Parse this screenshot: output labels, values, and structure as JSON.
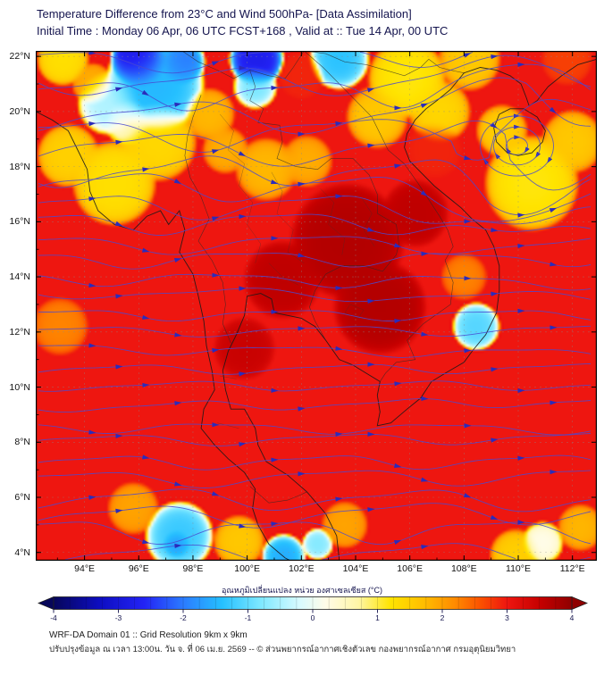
{
  "header": {
    "title": "Temperature Difference from 23°C and Wind 500hPa- [Data Assimilation]",
    "subtitle": "Initial Time : Monday 06 Apr, 06 UTC FCST+168 , Valid at ::  Tue 14 Apr, 00 UTC"
  },
  "map": {
    "lat_tick_labels": [
      "22°N",
      "20°N",
      "18°N",
      "16°N",
      "14°N",
      "12°N",
      "10°N",
      "8°N",
      "6°N",
      "4°N"
    ],
    "lon_tick_labels": [
      "94°E",
      "96°E",
      "98°E",
      "100°E",
      "102°E",
      "104°E",
      "106°E",
      "108°E",
      "110°E",
      "112°E"
    ]
  },
  "colorbar": {
    "label": "อุณหภูมิเปลี่ยนแปลง หน่วย องศาเซลเซียส (°C)",
    "tick_labels": [
      "-4",
      "-3",
      "-2",
      "-1",
      "0",
      "1",
      "2",
      "3",
      "4"
    ]
  },
  "footer": {
    "line1": "WRF-DA Domain 01 :: Grid Resolution 9km x 9km",
    "line2": "ปรับปรุงข้อมูล ณ เวลา 13:00น. วัน จ. ที่ 06 เม.ย. 2569 -- © ส่วนพยากรณ์อากาศเชิงตัวเลข กองพยากรณ์อากาศ กรมอุตุนิยมวิทยา"
  },
  "chart_data": {
    "type": "heatmap",
    "title": "Temperature Difference from 23°C and Wind 500hPa",
    "units": "°C",
    "lon_range": [
      92.2,
      112.9
    ],
    "lat_range": [
      3.7,
      22.2
    ],
    "lon_ticks": [
      94,
      96,
      98,
      100,
      102,
      104,
      106,
      108,
      110,
      112
    ],
    "lat_ticks": [
      22,
      20,
      18,
      16,
      14,
      12,
      10,
      8,
      6,
      4
    ],
    "value_range": [
      -4,
      4
    ],
    "base_value": 3.0,
    "colors": {
      "streamline": "#4a4ad0",
      "arrowhead": "#2b2bba",
      "grid": "#8a8a8a",
      "coastline": "#1a1a1a",
      "frame": "#000000",
      "text": "#14144e"
    },
    "colormap": [
      {
        "v": -4.0,
        "c": "#06065a"
      },
      {
        "v": -3.3,
        "c": "#0d0dc0"
      },
      {
        "v": -2.6,
        "c": "#2323f5"
      },
      {
        "v": -2.0,
        "c": "#2b7bff"
      },
      {
        "v": -1.4,
        "c": "#25c0ff"
      },
      {
        "v": -0.8,
        "c": "#7fe8ff"
      },
      {
        "v": -0.2,
        "c": "#d8fbff"
      },
      {
        "v": 0.2,
        "c": "#fffce8"
      },
      {
        "v": 0.7,
        "c": "#fff6a6"
      },
      {
        "v": 1.2,
        "c": "#ffe400"
      },
      {
        "v": 1.7,
        "c": "#ffbe00"
      },
      {
        "v": 2.2,
        "c": "#ff8a00"
      },
      {
        "v": 2.6,
        "c": "#fb5000"
      },
      {
        "v": 3.0,
        "c": "#ee1610"
      },
      {
        "v": 3.5,
        "c": "#c60000"
      },
      {
        "v": 4.0,
        "c": "#8f0000"
      }
    ],
    "temperature_blobs": [
      {
        "lon": 96.6,
        "lat": 21.0,
        "r": 1.9,
        "v": -1.6,
        "s": 1.0
      },
      {
        "lon": 96.0,
        "lat": 21.9,
        "r": 1.1,
        "v": -3.2,
        "s": 1.0
      },
      {
        "lon": 97.6,
        "lat": 21.8,
        "r": 0.9,
        "v": -2.2,
        "s": 0.85
      },
      {
        "lon": 94.9,
        "lat": 20.3,
        "r": 1.2,
        "v": -0.6,
        "s": 0.8
      },
      {
        "lon": 95.6,
        "lat": 19.6,
        "r": 0.9,
        "v": 0.3,
        "s": 0.6
      },
      {
        "lon": 100.35,
        "lat": 21.9,
        "r": 1.05,
        "v": -2.9,
        "s": 1.0
      },
      {
        "lon": 100.3,
        "lat": 20.9,
        "r": 0.85,
        "v": -1.0,
        "s": 0.6
      },
      {
        "lon": 103.4,
        "lat": 21.9,
        "r": 1.15,
        "v": -1.5,
        "s": 0.9
      },
      {
        "lon": 108.45,
        "lat": 12.2,
        "r": 0.9,
        "v": -1.2,
        "s": 0.95
      },
      {
        "lon": 97.5,
        "lat": 4.6,
        "r": 1.3,
        "v": -1.4,
        "s": 0.95
      },
      {
        "lon": 97.4,
        "lat": 4.3,
        "r": 0.55,
        "v": -2.1,
        "s": 0.7
      },
      {
        "lon": 101.35,
        "lat": 3.85,
        "r": 0.85,
        "v": -1.7,
        "s": 0.9
      },
      {
        "lon": 102.6,
        "lat": 4.3,
        "r": 0.6,
        "v": -0.9,
        "s": 0.75
      },
      {
        "lon": 110.9,
        "lat": 4.35,
        "r": 0.8,
        "v": 0.1,
        "s": 0.8
      },
      {
        "lon": 93.2,
        "lat": 21.9,
        "r": 1.0,
        "v": 1.2,
        "s": 0.8
      },
      {
        "lon": 94.3,
        "lat": 21.0,
        "r": 0.8,
        "v": 1.8,
        "s": 0.6
      },
      {
        "lon": 95.1,
        "lat": 17.4,
        "r": 1.6,
        "v": 1.2,
        "s": 0.85
      },
      {
        "lon": 93.4,
        "lat": 18.4,
        "r": 1.2,
        "v": 1.4,
        "s": 0.75
      },
      {
        "lon": 96.7,
        "lat": 18.9,
        "r": 1.5,
        "v": 1.3,
        "s": 0.7
      },
      {
        "lon": 98.6,
        "lat": 19.9,
        "r": 1.0,
        "v": 1.7,
        "s": 0.55
      },
      {
        "lon": 99.2,
        "lat": 18.6,
        "r": 0.9,
        "v": 1.8,
        "s": 0.5
      },
      {
        "lon": 100.7,
        "lat": 17.9,
        "r": 1.2,
        "v": 1.7,
        "s": 0.55
      },
      {
        "lon": 102.2,
        "lat": 18.2,
        "r": 1.0,
        "v": 1.8,
        "s": 0.45
      },
      {
        "lon": 105.9,
        "lat": 21.2,
        "r": 1.5,
        "v": 1.1,
        "s": 0.85
      },
      {
        "lon": 108.2,
        "lat": 21.9,
        "r": 1.2,
        "v": 1.5,
        "s": 0.65
      },
      {
        "lon": 104.8,
        "lat": 19.8,
        "r": 1.2,
        "v": 1.5,
        "s": 0.55
      },
      {
        "lon": 107.1,
        "lat": 20.0,
        "r": 1.2,
        "v": 1.3,
        "s": 0.55
      },
      {
        "lon": 110.5,
        "lat": 17.4,
        "r": 1.8,
        "v": 1.1,
        "s": 0.85
      },
      {
        "lon": 112.0,
        "lat": 18.9,
        "r": 1.2,
        "v": 1.5,
        "s": 0.6
      },
      {
        "lon": 109.4,
        "lat": 19.3,
        "r": 1.0,
        "v": 1.4,
        "s": 0.5
      },
      {
        "lon": 93.1,
        "lat": 12.2,
        "r": 1.1,
        "v": 2.2,
        "s": 0.5
      },
      {
        "lon": 99.7,
        "lat": 4.4,
        "r": 1.0,
        "v": 1.5,
        "s": 0.55
      },
      {
        "lon": 103.6,
        "lat": 5.0,
        "r": 0.9,
        "v": 1.9,
        "s": 0.5
      },
      {
        "lon": 95.8,
        "lat": 5.6,
        "r": 1.0,
        "v": 1.9,
        "s": 0.5
      },
      {
        "lon": 109.9,
        "lat": 3.9,
        "r": 1.0,
        "v": 1.4,
        "s": 0.55
      },
      {
        "lon": 112.3,
        "lat": 4.9,
        "r": 0.9,
        "v": 1.7,
        "s": 0.45
      },
      {
        "lon": 103.7,
        "lat": 15.3,
        "r": 2.2,
        "v": 3.7,
        "s": 0.75
      },
      {
        "lon": 104.9,
        "lat": 12.9,
        "r": 1.8,
        "v": 3.7,
        "s": 0.65
      },
      {
        "lon": 101.3,
        "lat": 13.9,
        "r": 1.5,
        "v": 3.6,
        "s": 0.55
      },
      {
        "lon": 106.2,
        "lat": 16.3,
        "r": 1.3,
        "v": 3.6,
        "s": 0.5
      },
      {
        "lon": 99.9,
        "lat": 11.4,
        "r": 1.2,
        "v": 3.5,
        "s": 0.45
      },
      {
        "lon": 102.0,
        "lat": 21.3,
        "r": 0.9,
        "v": 2.9,
        "s": 0.6
      },
      {
        "lon": 111.8,
        "lat": 21.9,
        "r": 1.0,
        "v": 2.7,
        "s": 0.55
      },
      {
        "lon": 106.9,
        "lat": 18.6,
        "r": 1.1,
        "v": 2.9,
        "s": 0.4
      },
      {
        "lon": 108.0,
        "lat": 14.0,
        "r": 0.9,
        "v": 2.2,
        "s": 0.4
      }
    ],
    "wind": {
      "level": "500hPa",
      "direction": "westerly",
      "vortex": {
        "lon": 109.95,
        "lat": 18.75
      },
      "streamline_count": 28
    }
  }
}
